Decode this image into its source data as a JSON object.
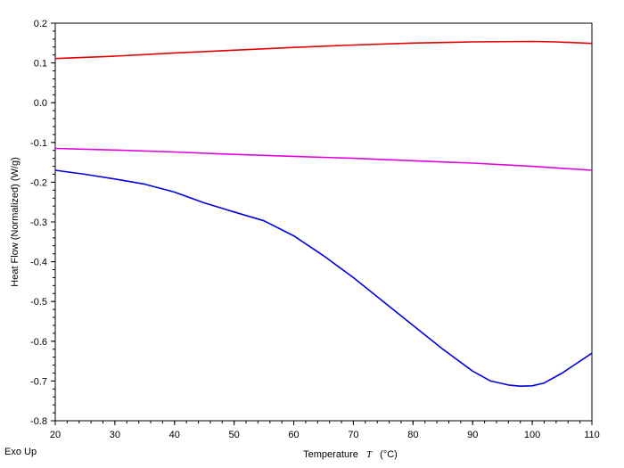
{
  "corner_note": "Exo Up",
  "chart_data": {
    "type": "line",
    "title": "",
    "xlabel_prefix": "Temperature",
    "xlabel_symbol": "T",
    "xlabel_unit": "(°C)",
    "ylabel": "Heat Flow (Normalized)  (W/g)",
    "xlim": [
      20,
      110
    ],
    "ylim": [
      -0.8,
      0.2
    ],
    "x_ticks": [
      20,
      30,
      40,
      50,
      60,
      70,
      80,
      90,
      100,
      110
    ],
    "y_ticks": [
      0.2,
      0.1,
      0.0,
      -0.1,
      -0.2,
      -0.3,
      -0.4,
      -0.5,
      -0.6,
      -0.7,
      -0.8
    ],
    "y_tick_labels": [
      "0.2",
      "0.1",
      "0.0",
      "-0.1",
      "-0.2",
      "-0.3",
      "-0.4",
      "-0.5",
      "-0.6",
      "-0.7",
      "-0.8"
    ],
    "grid": false,
    "series": [
      {
        "color": "#e00000",
        "x": [
          20,
          30,
          40,
          50,
          60,
          70,
          80,
          90,
          100,
          104,
          110
        ],
        "y": [
          0.111,
          0.117,
          0.125,
          0.132,
          0.139,
          0.145,
          0.15,
          0.153,
          0.154,
          0.153,
          0.149
        ]
      },
      {
        "color": "#e000e0",
        "x": [
          20,
          30,
          40,
          50,
          60,
          70,
          80,
          90,
          100,
          110
        ],
        "y": [
          -0.115,
          -0.119,
          -0.124,
          -0.13,
          -0.135,
          -0.14,
          -0.146,
          -0.152,
          -0.16,
          -0.17
        ]
      },
      {
        "color": "#0000e0",
        "x": [
          20,
          25,
          30,
          35,
          40,
          45,
          50,
          55,
          60,
          65,
          70,
          75,
          80,
          85,
          90,
          93,
          96,
          98,
          100,
          102,
          105,
          110
        ],
        "y": [
          -0.17,
          -0.18,
          -0.192,
          -0.205,
          -0.225,
          -0.252,
          -0.275,
          -0.297,
          -0.335,
          -0.385,
          -0.44,
          -0.5,
          -0.56,
          -0.62,
          -0.675,
          -0.7,
          -0.71,
          -0.713,
          -0.712,
          -0.705,
          -0.68,
          -0.63
        ]
      }
    ]
  }
}
